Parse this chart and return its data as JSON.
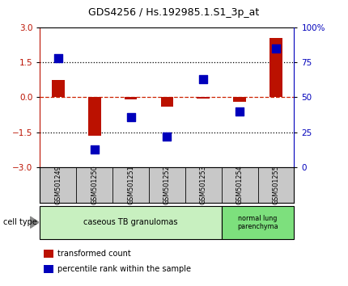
{
  "title": "GDS4256 / Hs.192985.1.S1_3p_at",
  "samples": [
    "GSM501249",
    "GSM501250",
    "GSM501251",
    "GSM501252",
    "GSM501253",
    "GSM501254",
    "GSM501255"
  ],
  "transformed_count": [
    0.75,
    -1.65,
    -0.08,
    -0.4,
    -0.05,
    -0.18,
    2.55
  ],
  "percentile_rank": [
    78,
    13,
    36,
    22,
    63,
    40,
    85
  ],
  "ylim_left": [
    -3,
    3
  ],
  "ylim_right": [
    0,
    100
  ],
  "left_ticks": [
    -3,
    -1.5,
    0,
    1.5,
    3
  ],
  "right_ticks": [
    0,
    25,
    50,
    75,
    100
  ],
  "right_tick_labels": [
    "0",
    "25",
    "50",
    "75",
    "100%"
  ],
  "hlines": [
    1.5,
    -1.5
  ],
  "bar_color": "#bb1100",
  "dot_color": "#0000bb",
  "zero_line_color": "#cc2200",
  "hline_color": "black",
  "cell_type_groups": [
    {
      "label": "caseous TB granulomas",
      "start": 0,
      "end": 5,
      "color": "#c8f0c0"
    },
    {
      "label": "normal lung\nparenchyma",
      "start": 5,
      "end": 7,
      "color": "#7de07d"
    }
  ],
  "cell_type_label": "cell type",
  "legend_items": [
    {
      "label": "transformed count",
      "color": "#bb1100"
    },
    {
      "label": "percentile rank within the sample",
      "color": "#0000bb"
    }
  ],
  "bar_width": 0.35,
  "dot_size": 55,
  "background_color": "#ffffff",
  "label_bg_color": "#c8c8c8",
  "label_sep_color": "#888888"
}
